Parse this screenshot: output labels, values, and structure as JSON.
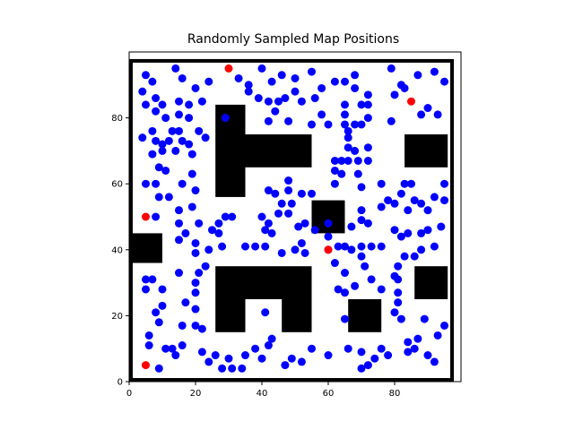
{
  "chart_data": {
    "type": "scatter",
    "title": "Randomly Sampled Map Positions",
    "xlabel": "",
    "ylabel": "",
    "xlim": [
      0,
      100
    ],
    "ylim": [
      0,
      100
    ],
    "grid": false,
    "legend": "none",
    "xticks": [
      0,
      20,
      40,
      60,
      80
    ],
    "yticks": [
      0,
      20,
      40,
      60,
      80
    ],
    "colors": {
      "samples": "#0000ff",
      "highlighted": "#ff0000",
      "obstacles": "#000000",
      "frame": "#000000"
    },
    "obstacles": [
      {
        "x0": 26,
        "x1": 35,
        "y0": 56,
        "y1": 84
      },
      {
        "x0": 35,
        "x1": 55,
        "y0": 65,
        "y1": 75
      },
      {
        "x0": 83,
        "x1": 96,
        "y0": 65,
        "y1": 75
      },
      {
        "x0": 55,
        "x1": 65,
        "y0": 45,
        "y1": 55
      },
      {
        "x0": 0,
        "x1": 10,
        "y0": 36,
        "y1": 45
      },
      {
        "x0": 26,
        "x1": 55,
        "y0": 25,
        "y1": 35
      },
      {
        "x0": 26,
        "x1": 35,
        "y0": 15,
        "y1": 25
      },
      {
        "x0": 46,
        "x1": 55,
        "y0": 15,
        "y1": 25
      },
      {
        "x0": 66,
        "x1": 76,
        "y0": 15,
        "y1": 25
      },
      {
        "x0": 86,
        "x1": 96,
        "y0": 25,
        "y1": 35
      }
    ],
    "series": [
      {
        "values": [
          [
            5,
            93
          ],
          [
            7,
            91
          ],
          [
            14,
            95
          ],
          [
            16,
            92
          ],
          [
            20,
            89
          ],
          [
            24,
            91
          ],
          [
            33,
            92
          ],
          [
            36,
            90
          ],
          [
            40,
            95
          ],
          [
            43,
            91
          ],
          [
            46,
            93
          ],
          [
            50,
            92
          ],
          [
            55,
            94
          ],
          [
            58,
            89
          ],
          [
            62,
            91
          ],
          [
            65,
            91
          ],
          [
            68,
            93
          ],
          [
            68,
            89
          ],
          [
            72,
            87
          ],
          [
            79,
            95
          ],
          [
            82,
            90
          ],
          [
            87,
            93
          ],
          [
            92,
            94
          ],
          [
            95,
            91
          ],
          [
            4,
            88
          ],
          [
            8,
            86
          ],
          [
            10,
            84
          ],
          [
            15,
            85
          ],
          [
            18,
            84
          ],
          [
            22,
            85
          ],
          [
            36,
            88
          ],
          [
            39,
            86
          ],
          [
            42,
            85
          ],
          [
            45,
            85
          ],
          [
            47,
            86
          ],
          [
            50,
            88
          ],
          [
            52,
            85
          ],
          [
            56,
            86
          ],
          [
            58,
            81
          ],
          [
            60,
            78
          ],
          [
            65,
            84
          ],
          [
            65,
            81
          ],
          [
            70,
            84
          ],
          [
            72,
            84
          ],
          [
            80,
            87
          ],
          [
            83,
            89
          ],
          [
            90,
            83
          ],
          [
            88,
            81
          ],
          [
            93,
            81
          ],
          [
            5,
            84
          ],
          [
            8,
            82
          ],
          [
            11,
            80
          ],
          [
            15,
            81
          ],
          [
            18,
            80
          ],
          [
            21,
            76
          ],
          [
            23,
            74
          ],
          [
            29,
            80
          ],
          [
            42,
            79
          ],
          [
            44,
            82
          ],
          [
            48,
            79
          ],
          [
            55,
            78
          ],
          [
            65,
            78
          ],
          [
            66,
            76
          ],
          [
            68,
            78
          ],
          [
            70,
            78
          ],
          [
            72,
            80
          ],
          [
            79,
            79
          ],
          [
            4,
            74
          ],
          [
            7,
            76
          ],
          [
            8,
            73
          ],
          [
            10,
            72
          ],
          [
            12,
            73
          ],
          [
            13,
            76
          ],
          [
            15,
            76
          ],
          [
            16,
            73
          ],
          [
            18,
            72
          ],
          [
            19,
            69
          ],
          [
            7,
            69
          ],
          [
            10,
            70
          ],
          [
            14,
            70
          ],
          [
            9,
            65
          ],
          [
            11,
            64
          ],
          [
            8,
            60
          ],
          [
            9,
            56
          ],
          [
            12,
            56
          ],
          [
            5,
            60
          ],
          [
            16,
            60
          ],
          [
            19,
            63
          ],
          [
            20,
            58
          ],
          [
            66,
            74
          ],
          [
            66,
            71
          ],
          [
            68,
            70
          ],
          [
            72,
            71
          ],
          [
            62,
            67
          ],
          [
            64,
            67
          ],
          [
            66,
            67
          ],
          [
            69,
            67
          ],
          [
            72,
            67
          ],
          [
            62,
            64
          ],
          [
            64,
            63
          ],
          [
            62,
            60
          ],
          [
            69,
            63
          ],
          [
            70,
            59
          ],
          [
            42,
            58
          ],
          [
            44,
            57
          ],
          [
            48,
            61
          ],
          [
            48,
            58
          ],
          [
            52,
            57
          ],
          [
            55,
            57
          ],
          [
            76,
            60
          ],
          [
            83,
            60
          ],
          [
            85,
            60
          ],
          [
            82,
            57
          ],
          [
            86,
            55
          ],
          [
            78,
            55
          ],
          [
            80,
            54
          ],
          [
            76,
            53
          ],
          [
            70,
            52
          ],
          [
            70,
            49
          ],
          [
            72,
            48
          ],
          [
            67,
            47
          ],
          [
            84,
            52
          ],
          [
            88,
            54
          ],
          [
            92,
            56
          ],
          [
            95,
            60
          ],
          [
            95,
            55
          ],
          [
            90,
            52
          ],
          [
            15,
            52
          ],
          [
            15,
            48
          ],
          [
            19,
            53
          ],
          [
            21,
            48
          ],
          [
            25,
            46
          ],
          [
            27,
            45
          ],
          [
            29,
            50
          ],
          [
            31,
            50
          ],
          [
            27,
            48
          ],
          [
            40,
            50
          ],
          [
            41,
            46
          ],
          [
            42,
            48
          ],
          [
            43,
            45
          ],
          [
            45,
            51
          ],
          [
            46,
            54
          ],
          [
            49,
            54
          ],
          [
            48,
            51
          ],
          [
            51,
            47
          ],
          [
            53,
            48
          ],
          [
            52,
            42
          ],
          [
            60,
            44
          ],
          [
            60,
            48
          ],
          [
            56,
            46
          ],
          [
            8,
            50
          ],
          [
            5,
            31
          ],
          [
            5,
            28
          ],
          [
            7,
            31
          ],
          [
            10,
            28
          ],
          [
            15,
            33
          ],
          [
            15,
            43
          ],
          [
            17,
            45
          ],
          [
            20,
            42
          ],
          [
            20,
            39
          ],
          [
            21,
            33
          ],
          [
            20,
            30
          ],
          [
            20,
            27
          ],
          [
            23,
            35
          ],
          [
            24,
            40
          ],
          [
            28,
            41
          ],
          [
            35,
            41
          ],
          [
            38,
            41
          ],
          [
            41,
            41
          ],
          [
            46,
            39
          ],
          [
            50,
            40
          ],
          [
            53,
            39
          ],
          [
            63,
            41
          ],
          [
            65,
            41
          ],
          [
            67,
            40
          ],
          [
            70,
            41
          ],
          [
            73,
            41
          ],
          [
            76,
            41
          ],
          [
            70,
            38
          ],
          [
            71,
            35
          ],
          [
            73,
            31
          ],
          [
            65,
            33
          ],
          [
            62,
            36
          ],
          [
            63,
            28
          ],
          [
            65,
            27
          ],
          [
            68,
            29
          ],
          [
            65,
            19
          ],
          [
            76,
            28
          ],
          [
            80,
            32
          ],
          [
            81,
            35
          ],
          [
            83,
            38
          ],
          [
            82,
            44
          ],
          [
            86,
            38
          ],
          [
            88,
            40
          ],
          [
            88,
            45
          ],
          [
            90,
            46
          ],
          [
            92,
            41
          ],
          [
            94,
            47
          ],
          [
            80,
            46
          ],
          [
            84,
            45
          ],
          [
            8,
            21
          ],
          [
            9,
            18
          ],
          [
            10,
            23
          ],
          [
            16,
            17
          ],
          [
            17,
            24
          ],
          [
            20,
            22
          ],
          [
            20,
            17
          ],
          [
            22,
            16
          ],
          [
            24,
            6
          ],
          [
            26,
            8
          ],
          [
            30,
            7
          ],
          [
            31,
            4
          ],
          [
            34,
            4
          ],
          [
            35,
            8
          ],
          [
            38,
            10
          ],
          [
            40,
            7
          ],
          [
            42,
            11
          ],
          [
            43,
            13
          ],
          [
            47,
            5
          ],
          [
            49,
            7
          ],
          [
            55,
            10
          ],
          [
            52,
            6
          ],
          [
            60,
            8
          ],
          [
            6,
            14
          ],
          [
            6,
            11
          ],
          [
            9,
            4
          ],
          [
            11,
            10
          ],
          [
            13,
            10
          ],
          [
            14,
            8
          ],
          [
            16,
            11
          ],
          [
            22,
            9
          ],
          [
            28,
            4
          ],
          [
            41,
            21
          ],
          [
            60,
            40
          ],
          [
            66,
            10
          ],
          [
            70,
            9
          ],
          [
            70,
            4
          ],
          [
            72,
            5
          ],
          [
            74,
            7
          ],
          [
            76,
            10
          ],
          [
            78,
            8
          ],
          [
            80,
            21
          ],
          [
            81,
            24
          ],
          [
            81,
            27
          ],
          [
            81,
            31
          ],
          [
            82,
            19
          ],
          [
            84,
            12
          ],
          [
            84,
            9
          ],
          [
            86,
            10
          ],
          [
            87,
            13
          ],
          [
            89,
            19
          ],
          [
            90,
            8
          ],
          [
            92,
            6
          ],
          [
            93,
            14
          ],
          [
            95,
            17
          ]
        ]
      },
      {
        "values": [
          [
            30,
            95
          ],
          [
            85,
            85
          ],
          [
            5,
            50
          ],
          [
            60,
            40
          ],
          [
            5,
            5
          ]
        ]
      }
    ]
  }
}
